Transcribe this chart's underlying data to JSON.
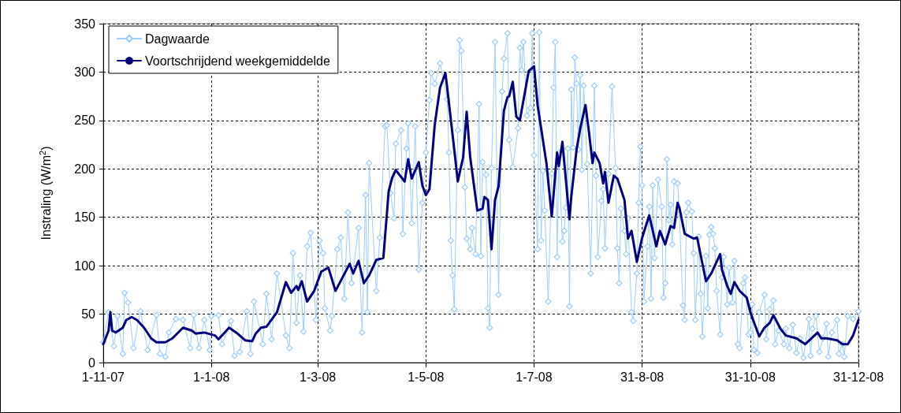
{
  "chart_data": {
    "type": "line",
    "ylabel": "Instraling (W/m$^{2}$)",
    "xlim": [
      "2007-11-01",
      "2008-12-31"
    ],
    "xticks": [
      {
        "value": "2007-11-01",
        "label": "1-11-07"
      },
      {
        "value": "2008-01-01",
        "label": "1-1-08"
      },
      {
        "value": "2008-03-01",
        "label": "1-3-08"
      },
      {
        "value": "2008-05-01",
        "label": "1-5-08"
      },
      {
        "value": "2008-07-01",
        "label": "1-7-08"
      },
      {
        "value": "2008-08-31",
        "label": "31-8-08"
      },
      {
        "value": "2008-10-31",
        "label": "31-10-08"
      },
      {
        "value": "2008-12-31",
        "label": "31-12-08"
      }
    ],
    "ylim": [
      0,
      350
    ],
    "yticks": [
      0,
      50,
      100,
      150,
      200,
      250,
      300,
      350
    ],
    "grid": true,
    "legend": "top left",
    "line_style": "solid",
    "series": [
      {
        "name": "Dagwaarde",
        "color": "#99ccff",
        "marker": "diamond",
        "x": [
          "2007-11-01",
          "2007-11-04",
          "2007-11-07",
          "2007-11-09",
          "2007-11-12",
          "2007-11-13",
          "2007-11-15",
          "2007-11-18",
          "2007-11-22",
          "2007-11-26",
          "2007-12-01",
          "2007-12-03",
          "2007-12-06",
          "2007-12-08",
          "2007-12-12",
          "2007-12-16",
          "2007-12-20",
          "2007-12-22",
          "2007-12-25",
          "2007-12-28",
          "2007-12-31",
          "2008-01-01",
          "2008-01-05",
          "2008-01-07",
          "2008-01-12",
          "2008-01-14",
          "2008-01-17",
          "2008-01-21",
          "2008-01-23",
          "2008-01-25",
          "2008-01-30",
          "2008-02-01",
          "2008-02-04",
          "2008-02-07",
          "2008-02-12",
          "2008-02-14",
          "2008-02-16",
          "2008-02-18",
          "2008-02-20",
          "2008-02-22",
          "2008-02-24",
          "2008-02-26",
          "2008-02-29",
          "2008-03-02",
          "2008-03-04",
          "2008-03-05",
          "2008-03-08",
          "2008-03-09",
          "2008-03-12",
          "2008-03-14",
          "2008-03-16",
          "2008-03-18",
          "2008-03-20",
          "2008-03-24",
          "2008-03-26",
          "2008-03-28",
          "2008-03-29",
          "2008-03-30",
          "2008-04-03",
          "2008-04-05",
          "2008-04-08",
          "2008-04-09",
          "2008-04-11",
          "2008-04-13",
          "2008-04-14",
          "2008-04-17",
          "2008-04-18",
          "2008-04-20",
          "2008-04-21",
          "2008-04-23",
          "2008-04-25",
          "2008-04-27",
          "2008-04-29",
          "2008-05-01",
          "2008-05-03",
          "2008-05-04",
          "2008-05-06",
          "2008-05-09",
          "2008-05-13",
          "2008-05-14",
          "2008-05-15",
          "2008-05-16",
          "2008-05-17",
          "2008-05-19",
          "2008-05-20",
          "2008-05-21",
          "2008-05-23",
          "2008-05-24",
          "2008-05-26",
          "2008-05-27",
          "2008-05-29",
          "2008-05-31",
          "2008-06-01",
          "2008-06-02",
          "2008-06-04",
          "2008-06-05",
          "2008-06-06",
          "2008-06-07",
          "2008-06-09",
          "2008-06-11",
          "2008-06-13",
          "2008-06-14",
          "2008-06-16",
          "2008-06-17",
          "2008-06-19",
          "2008-06-22",
          "2008-06-23",
          "2008-06-24",
          "2008-06-25",
          "2008-06-27",
          "2008-06-29",
          "2008-06-30",
          "2008-07-01",
          "2008-07-03",
          "2008-07-04",
          "2008-07-05",
          "2008-07-06",
          "2008-07-07",
          "2008-07-09",
          "2008-07-11",
          "2008-07-12",
          "2008-07-13",
          "2008-07-14",
          "2008-07-15",
          "2008-07-17",
          "2008-07-18",
          "2008-07-19",
          "2008-07-20",
          "2008-07-21",
          "2008-07-22",
          "2008-07-23",
          "2008-07-24",
          "2008-07-25",
          "2008-07-26",
          "2008-07-27",
          "2008-07-28",
          "2008-07-29",
          "2008-07-31",
          "2008-08-02",
          "2008-08-04",
          "2008-08-05",
          "2008-08-06",
          "2008-08-08",
          "2008-08-09",
          "2008-08-10",
          "2008-08-12",
          "2008-08-14",
          "2008-08-16",
          "2008-08-17",
          "2008-08-18",
          "2008-08-19",
          "2008-08-21",
          "2008-08-22",
          "2008-08-23",
          "2008-08-25",
          "2008-08-26",
          "2008-08-28",
          "2008-08-29",
          "2008-08-30",
          "2008-08-31",
          "2008-09-01",
          "2008-09-03",
          "2008-09-04",
          "2008-09-05",
          "2008-09-06",
          "2008-09-07",
          "2008-09-09",
          "2008-09-11",
          "2008-09-12",
          "2008-09-13",
          "2008-09-14",
          "2008-09-15",
          "2008-09-16",
          "2008-09-17",
          "2008-09-18",
          "2008-09-20",
          "2008-09-21",
          "2008-09-23",
          "2008-09-24",
          "2008-09-25",
          "2008-09-26",
          "2008-09-28",
          "2008-09-29",
          "2008-09-30",
          "2008-10-02",
          "2008-10-03",
          "2008-10-04",
          "2008-10-06",
          "2008-10-07",
          "2008-10-08",
          "2008-10-09",
          "2008-10-10",
          "2008-10-11",
          "2008-10-12",
          "2008-10-14",
          "2008-10-15",
          "2008-10-16",
          "2008-10-18",
          "2008-10-19",
          "2008-10-21",
          "2008-10-22",
          "2008-10-24",
          "2008-10-25",
          "2008-10-27",
          "2008-10-28",
          "2008-10-30",
          "2008-10-31",
          "2008-11-01",
          "2008-11-02",
          "2008-11-04",
          "2008-11-05",
          "2008-11-08",
          "2008-11-09",
          "2008-11-11",
          "2008-11-13",
          "2008-11-14",
          "2008-11-16",
          "2008-11-19",
          "2008-11-20",
          "2008-11-22",
          "2008-11-24",
          "2008-11-26",
          "2008-11-28",
          "2008-11-30",
          "2008-12-03",
          "2008-12-04",
          "2008-12-05",
          "2008-12-07",
          "2008-12-09",
          "2008-12-11",
          "2008-12-13",
          "2008-12-14",
          "2008-12-16",
          "2008-12-19",
          "2008-12-20",
          "2008-12-22",
          "2008-12-23",
          "2008-12-25",
          "2008-12-28",
          "2008-12-31"
        ],
        "values": [
          21,
          52,
          17,
          48,
          9,
          72,
          62,
          15,
          53,
          13,
          49,
          9,
          6,
          31,
          45,
          44,
          15,
          49,
          15,
          44,
          13,
          48,
          49,
          19,
          43,
          7,
          11,
          53,
          9,
          63,
          19,
          71,
          24,
          92,
          28,
          15,
          113,
          41,
          90,
          32,
          120,
          134,
          44,
          126,
          113,
          56,
          33,
          48,
          117,
          129,
          66,
          155,
          82,
          139,
          31,
          173,
          52,
          206,
          74,
          129,
          244,
          245,
          175,
          149,
          226,
          240,
          133,
          221,
          247,
          144,
          244,
          96,
          165,
          217,
          271,
          299,
          288,
          309,
          272,
          217,
          126,
          90,
          55,
          240,
          333,
          322,
          181,
          128,
          117,
          139,
          112,
          267,
          110,
          207,
          194,
          56,
          36,
          201,
          331,
          70,
          280,
          314,
          340,
          230,
          202,
          242,
          325,
          302,
          331,
          255,
          263,
          340,
          214,
          117,
          341,
          126,
          198,
          157,
          63,
          195,
          284,
          331,
          109,
          217,
          125,
          136,
          160,
          221,
          58,
          282,
          222,
          315,
          288,
          220,
          297,
          199,
          286,
          205,
          92,
          286,
          193,
          109,
          167,
          179,
          118,
          195,
          285,
          201,
          118,
          82,
          159,
          136,
          112,
          149,
          52,
          43,
          92,
          165,
          223,
          183,
          63,
          120,
          161,
          66,
          183,
          108,
          189,
          161,
          67,
          82,
          210,
          147,
          163,
          122,
          187,
          185,
          153,
          59,
          44,
          155,
          165,
          156,
          113,
          44,
          130,
          71,
          27,
          110,
          56,
          132,
          140,
          133,
          118,
          74,
          29,
          88,
          109,
          60,
          98,
          62,
          105,
          19,
          15,
          82,
          88,
          29,
          31,
          60,
          13,
          10,
          52,
          70,
          24,
          55,
          64,
          19,
          33,
          19,
          35,
          15,
          39,
          10,
          25,
          5,
          45,
          7,
          35,
          48,
          11,
          25,
          40,
          6,
          31,
          44,
          9,
          19,
          6,
          48,
          45,
          53
        ]
      },
      {
        "name": "Voortschrijdend weekgemiddelde",
        "color": "#000080",
        "marker": "none",
        "x": [
          "2007-11-01",
          "2007-11-04",
          "2007-11-05",
          "2007-11-06",
          "2007-11-08",
          "2007-11-12",
          "2007-11-14",
          "2007-11-17",
          "2007-11-20",
          "2007-11-24",
          "2007-11-28",
          "2007-12-01",
          "2007-12-06",
          "2007-12-10",
          "2007-12-16",
          "2007-12-21",
          "2007-12-23",
          "2007-12-28",
          "2008-01-03",
          "2008-01-05",
          "2008-01-11",
          "2008-01-15",
          "2008-01-20",
          "2008-01-24",
          "2008-01-26",
          "2008-01-29",
          "2008-02-01",
          "2008-02-07",
          "2008-02-12",
          "2008-02-15",
          "2008-02-18",
          "2008-02-19",
          "2008-02-21",
          "2008-02-24",
          "2008-02-28",
          "2008-03-03",
          "2008-03-07",
          "2008-03-11",
          "2008-03-15",
          "2008-03-19",
          "2008-03-21",
          "2008-03-24",
          "2008-03-27",
          "2008-03-30",
          "2008-04-03",
          "2008-04-07",
          "2008-04-10",
          "2008-04-12",
          "2008-04-14",
          "2008-04-16",
          "2008-04-19",
          "2008-04-21",
          "2008-04-23",
          "2008-04-27",
          "2008-04-29",
          "2008-05-01",
          "2008-05-03",
          "2008-05-06",
          "2008-05-09",
          "2008-05-12",
          "2008-05-13",
          "2008-05-17",
          "2008-05-19",
          "2008-05-22",
          "2008-05-24",
          "2008-05-26",
          "2008-05-30",
          "2008-06-02",
          "2008-06-03",
          "2008-06-05",
          "2008-06-07",
          "2008-06-09",
          "2008-06-11",
          "2008-06-14",
          "2008-06-16",
          "2008-06-17",
          "2008-06-19",
          "2008-06-21",
          "2008-06-23",
          "2008-06-28",
          "2008-07-01",
          "2008-07-03",
          "2008-07-08",
          "2008-07-11",
          "2008-07-14",
          "2008-07-15",
          "2008-07-17",
          "2008-07-21",
          "2008-07-22",
          "2008-07-25",
          "2008-07-27",
          "2008-07-30",
          "2008-08-01",
          "2008-08-03",
          "2008-08-04",
          "2008-08-07",
          "2008-08-09",
          "2008-08-10",
          "2008-08-12",
          "2008-08-15",
          "2008-08-17",
          "2008-08-21",
          "2008-08-23",
          "2008-08-25",
          "2008-08-28",
          "2008-08-31",
          "2008-09-04",
          "2008-09-08",
          "2008-09-10",
          "2008-09-13",
          "2008-09-16",
          "2008-09-18",
          "2008-09-20",
          "2008-09-21",
          "2008-09-24",
          "2008-09-29",
          "2008-10-01",
          "2008-10-06",
          "2008-10-09",
          "2008-10-14",
          "2008-10-15",
          "2008-10-18",
          "2008-10-20",
          "2008-10-22",
          "2008-10-25",
          "2008-10-29",
          "2008-10-31",
          "2008-11-05",
          "2008-11-08",
          "2008-11-11",
          "2008-11-13",
          "2008-11-17",
          "2008-11-20",
          "2008-11-26",
          "2008-12-01",
          "2008-12-08",
          "2008-12-10",
          "2008-12-13",
          "2008-12-19",
          "2008-12-22",
          "2008-12-25",
          "2008-12-28",
          "2008-12-31"
        ],
        "values": [
          19,
          33,
          52,
          33,
          31,
          36,
          44,
          47,
          44,
          36,
          25,
          21,
          21,
          25,
          36,
          33,
          30,
          31,
          28,
          24,
          36,
          31,
          23,
          22,
          30,
          36,
          37,
          52,
          83,
          72,
          79,
          75,
          84,
          63,
          74,
          94,
          98,
          74,
          88,
          102,
          92,
          105,
          82,
          90,
          106,
          108,
          177,
          191,
          199,
          194,
          187,
          210,
          190,
          207,
          183,
          173,
          179,
          246,
          284,
          299,
          284,
          220,
          187,
          212,
          259,
          212,
          157,
          159,
          171,
          168,
          117,
          168,
          182,
          260,
          274,
          275,
          290,
          254,
          250,
          301,
          306,
          266,
          206,
          151,
          217,
          203,
          228,
          148,
          171,
          220,
          241,
          266,
          238,
          206,
          217,
          206,
          185,
          197,
          165,
          193,
          190,
          168,
          128,
          136,
          104,
          129,
          152,
          120,
          136,
          122,
          141,
          139,
          165,
          160,
          133,
          128,
          129,
          84,
          92,
          112,
          96,
          79,
          71,
          83,
          74,
          67,
          52,
          27,
          36,
          41,
          49,
          35,
          28,
          25,
          19,
          31,
          25,
          25,
          23,
          19,
          19,
          28,
          44
        ]
      }
    ]
  }
}
